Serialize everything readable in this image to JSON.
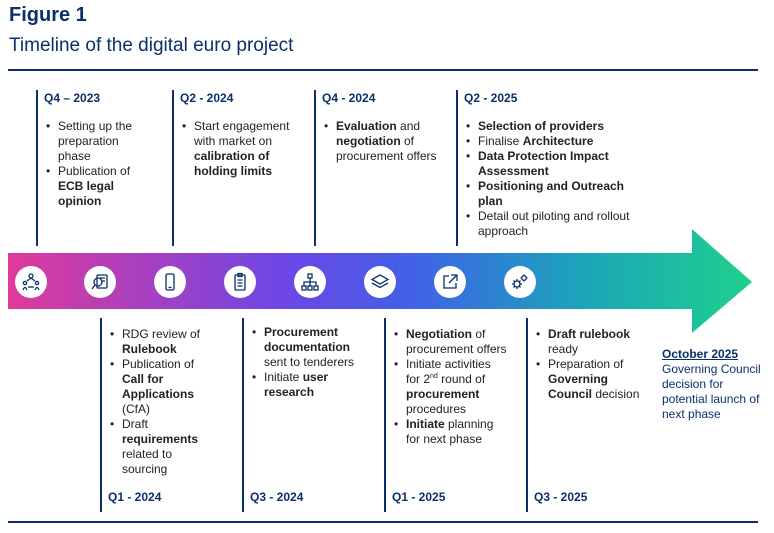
{
  "figure": {
    "label": "Figure 1",
    "title": "Timeline of the digital euro project"
  },
  "top": [
    {
      "quarter": "Q4 – 2023",
      "items": [
        [
          "Setting up the preparation phase"
        ],
        [
          "Publication of ",
          "**ECB legal opinion**"
        ]
      ]
    },
    {
      "quarter": "Q2 - 2024",
      "items": [
        [
          "Start engagement with market on ",
          "**calibration of holding limits**"
        ]
      ]
    },
    {
      "quarter": "Q4 - 2024",
      "items": [
        [
          "**Evaluation**",
          " and ",
          "**negotiation**",
          " of procurement offers"
        ]
      ]
    },
    {
      "quarter": "Q2 - 2025",
      "items": [
        [
          "**Selection of providers**"
        ],
        [
          "Finalise ",
          "**Architecture**"
        ],
        [
          "**Data Protection Impact Assessment**"
        ],
        [
          "**Positioning and Outreach plan**"
        ],
        [
          "Detail out piloting and rollout approach"
        ]
      ]
    }
  ],
  "bottom": [
    {
      "quarter": "Q1 - 2024",
      "items": [
        [
          "RDG review of ",
          "**Rulebook**"
        ],
        [
          "Publication of ",
          "**Call for Applications**",
          " (CfA)"
        ],
        [
          "Draft ",
          "**requirements**",
          " related to sourcing"
        ]
      ]
    },
    {
      "quarter": "Q3 - 2024",
      "items": [
        [
          "**Procurement documentation**",
          " sent to tenderers"
        ],
        [
          "Initiate ",
          "**user research**"
        ]
      ]
    },
    {
      "quarter": "Q1 - 2025",
      "items": [
        [
          "**Negotiation**",
          " of procurement offers"
        ],
        [
          "Initiate activities for 2",
          "^nd",
          " round of ",
          "**procurement**",
          " procedures"
        ],
        [
          "**Initiate**",
          " planning for next phase"
        ]
      ]
    },
    {
      "quarter": "Q3 - 2025",
      "items": [
        [
          "**Draft rulebook**",
          " ready"
        ],
        [
          "Preparation of ",
          "**Governing Council**",
          " decision"
        ]
      ]
    }
  ],
  "final": {
    "date": "October 2025",
    "text": "Governing Council decision for potential launch of next phase"
  },
  "icons": [
    "people-icon",
    "magnifier-document-icon",
    "smartphone-icon",
    "clipboard-icon",
    "org-chart-icon",
    "layers-icon",
    "external-link-icon",
    "gears-icon"
  ],
  "colors": {
    "navy": "#0b2f6b",
    "arrow_start": "#e03a9a",
    "arrow_mid": "#4b52e6",
    "arrow_end": "#1fd08c"
  }
}
